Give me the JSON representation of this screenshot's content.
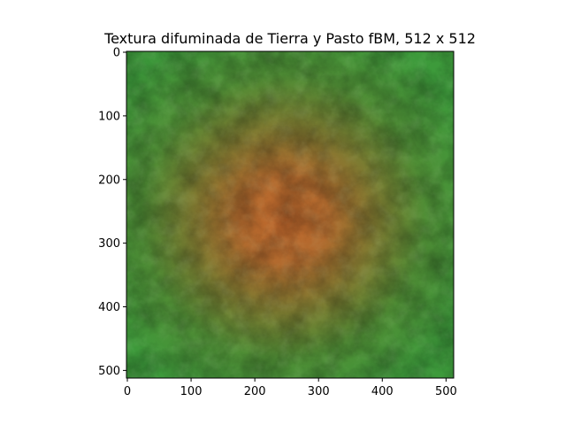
{
  "chart_data": {
    "type": "heatmap",
    "title": "Textura difuminada de Tierra y Pasto fBM, 512 x 512",
    "xlabel": "",
    "ylabel": "",
    "xlim": [
      0,
      512
    ],
    "ylim": [
      512,
      0
    ],
    "width": 512,
    "height": 512,
    "x_ticks": [
      0,
      100,
      200,
      300,
      400,
      500
    ],
    "y_ticks": [
      0,
      100,
      200,
      300,
      400,
      500
    ],
    "grid": false,
    "colors": {
      "grass": "#3d9a3b",
      "dirt": "#c0672c",
      "dark_grass": "#2f7a30"
    },
    "description_pattern": "radial blend: dirt centre near (256, 256) fading to grass at edges, with fBm noise"
  }
}
